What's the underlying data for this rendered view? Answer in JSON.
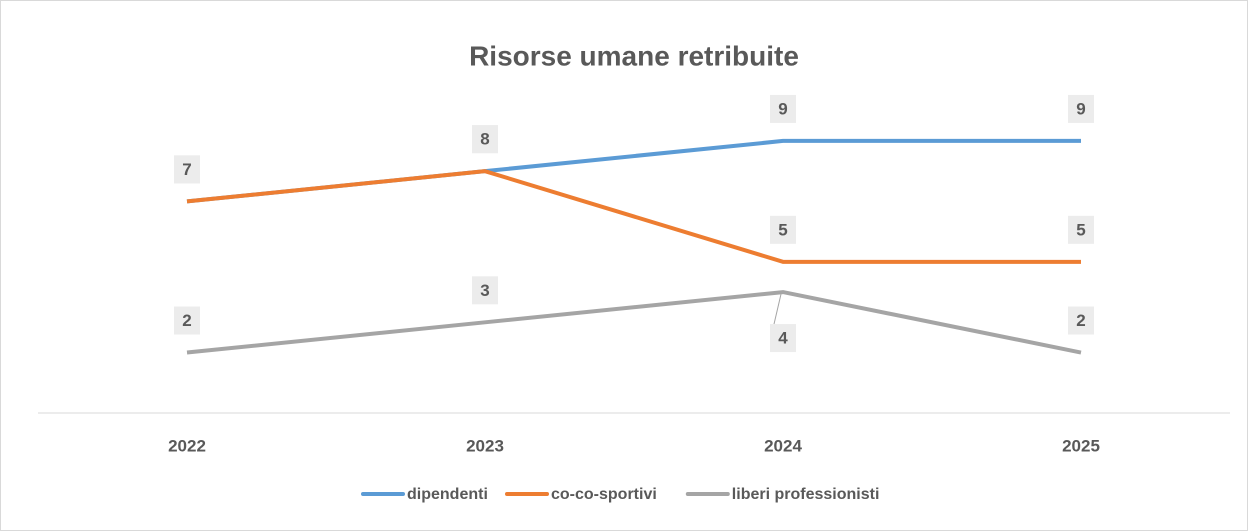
{
  "chart_data": {
    "type": "line",
    "title": "Risorse umane retribuite",
    "categories": [
      "2022",
      "2023",
      "2024",
      "2025"
    ],
    "series": [
      {
        "name": "dipendenti",
        "color": "#5b9bd5",
        "values": [
          7,
          8,
          9,
          9
        ]
      },
      {
        "name": "co-co-sportivi",
        "color": "#ed7d31",
        "values": [
          7,
          8,
          5,
          5
        ]
      },
      {
        "name": "liberi professionisti",
        "color": "#a5a5a5",
        "values": [
          2,
          3,
          4,
          2
        ]
      }
    ],
    "ylim": [
      0,
      13
    ],
    "grid": false,
    "legend": "bottom"
  }
}
